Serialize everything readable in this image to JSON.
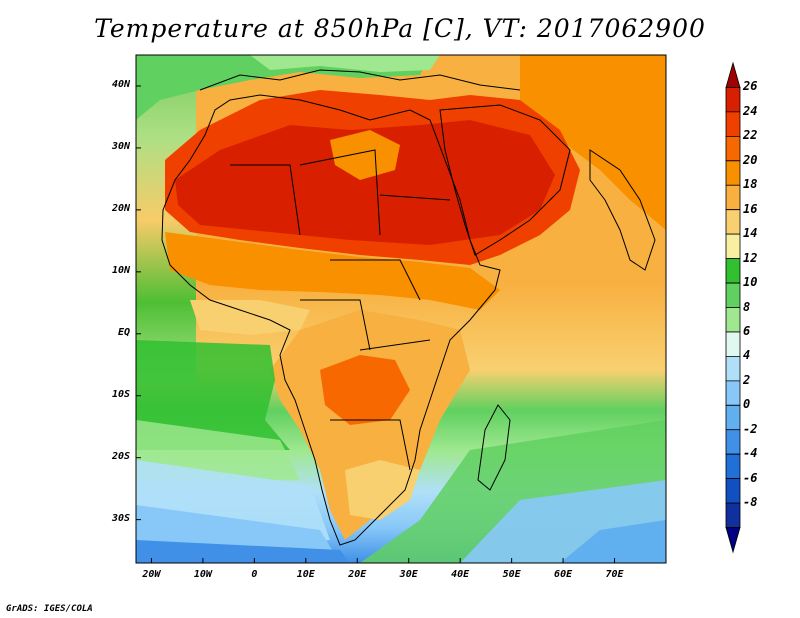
{
  "title": "Temperature at 850hPa [C], VT: 2017062900",
  "credit": "GrADS: IGES/COLA",
  "map": {
    "region": "Africa",
    "lon_range": [
      -23,
      80
    ],
    "lat_range": [
      -37,
      45
    ],
    "lat_ticks": [
      {
        "value": 40,
        "label": "40N"
      },
      {
        "value": 30,
        "label": "30N"
      },
      {
        "value": 20,
        "label": "20N"
      },
      {
        "value": 10,
        "label": "10N"
      },
      {
        "value": 0,
        "label": "EQ"
      },
      {
        "value": -10,
        "label": "10S"
      },
      {
        "value": -20,
        "label": "20S"
      },
      {
        "value": -30,
        "label": "30S"
      }
    ],
    "lon_ticks": [
      {
        "value": -20,
        "label": "20W"
      },
      {
        "value": -10,
        "label": "10W"
      },
      {
        "value": 0,
        "label": "0"
      },
      {
        "value": 10,
        "label": "10E"
      },
      {
        "value": 20,
        "label": "20E"
      },
      {
        "value": 30,
        "label": "30E"
      },
      {
        "value": 40,
        "label": "40E"
      },
      {
        "value": 50,
        "label": "50E"
      },
      {
        "value": 60,
        "label": "60E"
      },
      {
        "value": 70,
        "label": "70E"
      }
    ]
  },
  "colorbar": {
    "levels": [
      26,
      24,
      22,
      20,
      18,
      16,
      14,
      12,
      10,
      8,
      6,
      4,
      2,
      0,
      -2,
      -4,
      -6,
      -8
    ],
    "colors": [
      "#a00000",
      "#d82000",
      "#f04000",
      "#f86800",
      "#f89000",
      "#f8b040",
      "#f8d070",
      "#f8f0a0",
      "#30c030",
      "#60d060",
      "#a0e890",
      "#e0f8f0",
      "#b0e0f8",
      "#88c8f8",
      "#60b0f0",
      "#4090e8",
      "#2070d8",
      "#1050c0",
      "#1030a0",
      "#000080"
    ]
  }
}
